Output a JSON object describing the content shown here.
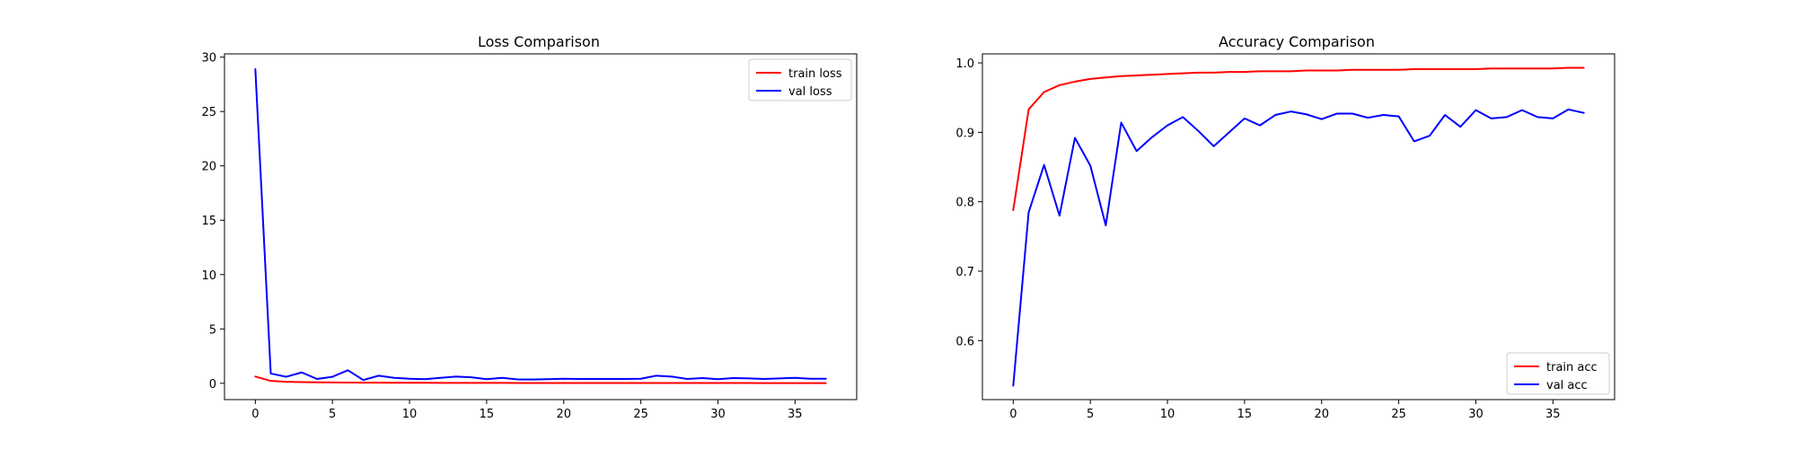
{
  "chart_data": [
    {
      "type": "line",
      "title": "Loss Comparison",
      "xlabel": "",
      "ylabel": "",
      "xlim": [
        -2,
        39
      ],
      "ylim": [
        -1.5,
        30.3
      ],
      "xticks": [
        0,
        5,
        10,
        15,
        20,
        25,
        30,
        35
      ],
      "yticks": [
        0,
        5,
        10,
        15,
        20,
        25,
        30
      ],
      "grid": false,
      "legend_position": "top-right",
      "x": [
        0,
        1,
        2,
        3,
        4,
        5,
        6,
        7,
        8,
        9,
        10,
        11,
        12,
        13,
        14,
        15,
        16,
        17,
        18,
        19,
        20,
        21,
        22,
        23,
        24,
        25,
        26,
        27,
        28,
        29,
        30,
        31,
        32,
        33,
        34,
        35,
        36,
        37
      ],
      "series": [
        {
          "name": "train loss",
          "color": "#ff0000",
          "values": [
            0.62,
            0.22,
            0.14,
            0.11,
            0.09,
            0.08,
            0.07,
            0.06,
            0.06,
            0.05,
            0.05,
            0.05,
            0.04,
            0.04,
            0.04,
            0.04,
            0.04,
            0.03,
            0.03,
            0.03,
            0.03,
            0.03,
            0.03,
            0.03,
            0.03,
            0.03,
            0.03,
            0.03,
            0.03,
            0.03,
            0.03,
            0.03,
            0.03,
            0.02,
            0.02,
            0.02,
            0.02,
            0.02
          ]
        },
        {
          "name": "val loss",
          "color": "#0000ff",
          "values": [
            28.9,
            0.9,
            0.6,
            1.0,
            0.4,
            0.6,
            1.2,
            0.3,
            0.7,
            0.5,
            0.42,
            0.38,
            0.5,
            0.62,
            0.55,
            0.38,
            0.5,
            0.36,
            0.35,
            0.38,
            0.42,
            0.4,
            0.4,
            0.4,
            0.4,
            0.42,
            0.7,
            0.62,
            0.4,
            0.48,
            0.38,
            0.48,
            0.45,
            0.4,
            0.45,
            0.5,
            0.42,
            0.42
          ]
        }
      ]
    },
    {
      "type": "line",
      "title": "Accuracy Comparison",
      "xlabel": "",
      "ylabel": "",
      "xlim": [
        -2,
        39
      ],
      "ylim": [
        0.515,
        1.013
      ],
      "xticks": [
        0,
        5,
        10,
        15,
        20,
        25,
        30,
        35
      ],
      "yticks": [
        0.6,
        0.7,
        0.8,
        0.9,
        1.0
      ],
      "ytick_labels": [
        "0.6",
        "0.7",
        "0.8",
        "0.9",
        "1.0"
      ],
      "grid": false,
      "legend_position": "bottom-right",
      "x": [
        0,
        1,
        2,
        3,
        4,
        5,
        6,
        7,
        8,
        9,
        10,
        11,
        12,
        13,
        14,
        15,
        16,
        17,
        18,
        19,
        20,
        21,
        22,
        23,
        24,
        25,
        26,
        27,
        28,
        29,
        30,
        31,
        32,
        33,
        34,
        35,
        36,
        37
      ],
      "series": [
        {
          "name": "train acc",
          "color": "#ff0000",
          "values": [
            0.788,
            0.933,
            0.958,
            0.968,
            0.973,
            0.977,
            0.979,
            0.981,
            0.982,
            0.983,
            0.984,
            0.985,
            0.986,
            0.986,
            0.987,
            0.987,
            0.988,
            0.988,
            0.988,
            0.989,
            0.989,
            0.989,
            0.99,
            0.99,
            0.99,
            0.99,
            0.991,
            0.991,
            0.991,
            0.991,
            0.991,
            0.992,
            0.992,
            0.992,
            0.992,
            0.992,
            0.993,
            0.993
          ]
        },
        {
          "name": "val acc",
          "color": "#0000ff",
          "values": [
            0.535,
            0.785,
            0.853,
            0.78,
            0.892,
            0.852,
            0.766,
            0.914,
            0.873,
            0.893,
            0.91,
            0.922,
            0.902,
            0.88,
            0.9,
            0.92,
            0.91,
            0.925,
            0.93,
            0.926,
            0.919,
            0.927,
            0.927,
            0.921,
            0.925,
            0.923,
            0.887,
            0.895,
            0.925,
            0.908,
            0.932,
            0.92,
            0.922,
            0.932,
            0.922,
            0.92,
            0.933,
            0.928
          ]
        }
      ]
    }
  ]
}
